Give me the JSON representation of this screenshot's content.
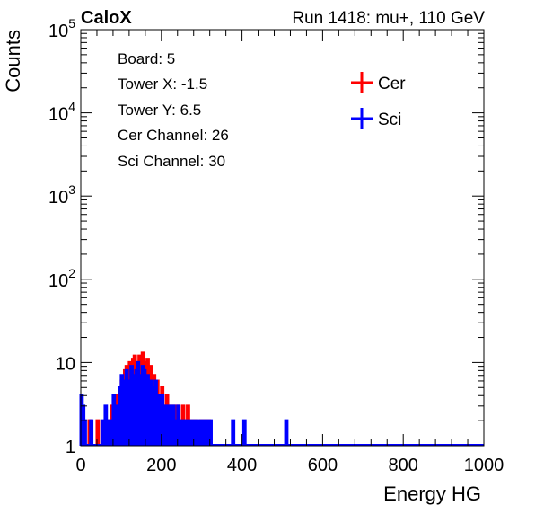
{
  "header": {
    "experiment": "CaloX",
    "run_info": "Run 1418: mu+, 110 GeV"
  },
  "info_box": {
    "lines": [
      "Board: 5",
      "Tower X: -1.5",
      "Tower Y: 6.5",
      "Cer Channel: 26",
      "Sci Channel: 30"
    ]
  },
  "chart_data": {
    "type": "bar",
    "title": "",
    "xlabel": "Energy HG",
    "ylabel": "Counts",
    "xlim": [
      0,
      1000
    ],
    "ylim": [
      1,
      100000
    ],
    "y_scale": "log",
    "x_ticks": [
      0,
      200,
      400,
      600,
      800,
      1000
    ],
    "x_tick_labels": [
      "0",
      "200",
      "400",
      "600",
      "800",
      "1000"
    ],
    "y_ticks": [
      1,
      10,
      100,
      1000,
      10000,
      100000
    ],
    "y_tick_labels": [
      {
        "base": "1",
        "exp": ""
      },
      {
        "base": "10",
        "exp": ""
      },
      {
        "base": "10",
        "exp": "2"
      },
      {
        "base": "10",
        "exp": "3"
      },
      {
        "base": "10",
        "exp": "4"
      },
      {
        "base": "10",
        "exp": "5"
      }
    ],
    "legend_position": "top-right",
    "series": [
      {
        "name": "Cer",
        "color": "#ff0000",
        "bin_width": 4,
        "bins": [
          [
            4,
            2
          ],
          [
            20,
            2
          ],
          [
            40,
            2
          ],
          [
            68,
            2
          ],
          [
            76,
            3
          ],
          [
            84,
            2
          ],
          [
            88,
            4
          ],
          [
            92,
            3
          ],
          [
            96,
            5
          ],
          [
            100,
            6
          ],
          [
            104,
            6
          ],
          [
            108,
            8
          ],
          [
            112,
            9
          ],
          [
            116,
            7
          ],
          [
            120,
            10
          ],
          [
            124,
            8
          ],
          [
            128,
            11
          ],
          [
            132,
            12
          ],
          [
            136,
            10
          ],
          [
            140,
            9
          ],
          [
            144,
            12
          ],
          [
            148,
            11
          ],
          [
            152,
            13
          ],
          [
            156,
            10
          ],
          [
            160,
            9
          ],
          [
            164,
            11
          ],
          [
            168,
            8
          ],
          [
            172,
            9
          ],
          [
            176,
            6
          ],
          [
            180,
            7
          ],
          [
            184,
            5
          ],
          [
            188,
            6
          ],
          [
            192,
            4
          ],
          [
            196,
            3
          ],
          [
            200,
            5
          ],
          [
            204,
            3
          ],
          [
            208,
            2
          ],
          [
            212,
            4
          ],
          [
            216,
            3
          ],
          [
            220,
            2
          ],
          [
            224,
            3
          ],
          [
            228,
            2
          ],
          [
            232,
            3
          ],
          [
            236,
            2
          ],
          [
            240,
            3
          ],
          [
            244,
            2
          ],
          [
            248,
            2
          ],
          [
            252,
            3
          ],
          [
            256,
            2
          ],
          [
            260,
            2
          ],
          [
            264,
            3
          ],
          [
            268,
            2
          ],
          [
            272,
            2
          ],
          [
            276,
            2
          ],
          [
            280,
            2
          ],
          [
            284,
            2
          ],
          [
            296,
            2
          ],
          [
            300,
            2
          ],
          [
            304,
            2
          ],
          [
            312,
            2
          ],
          [
            316,
            2
          ]
        ]
      },
      {
        "name": "Sci",
        "color": "#0000ff",
        "bin_width": 4,
        "bins": [
          [
            0,
            4
          ],
          [
            4,
            3
          ],
          [
            8,
            2
          ],
          [
            24,
            2
          ],
          [
            52,
            2
          ],
          [
            56,
            2
          ],
          [
            60,
            3
          ],
          [
            64,
            2
          ],
          [
            72,
            2
          ],
          [
            80,
            4
          ],
          [
            88,
            3
          ],
          [
            92,
            3
          ],
          [
            96,
            5
          ],
          [
            100,
            7
          ],
          [
            104,
            4
          ],
          [
            108,
            6
          ],
          [
            112,
            8
          ],
          [
            116,
            6
          ],
          [
            120,
            5
          ],
          [
            124,
            9
          ],
          [
            128,
            7
          ],
          [
            132,
            6
          ],
          [
            136,
            8
          ],
          [
            140,
            10
          ],
          [
            144,
            7
          ],
          [
            148,
            6
          ],
          [
            152,
            9
          ],
          [
            156,
            8
          ],
          [
            160,
            5
          ],
          [
            164,
            7
          ],
          [
            168,
            4
          ],
          [
            172,
            6
          ],
          [
            176,
            5
          ],
          [
            180,
            4
          ],
          [
            184,
            6
          ],
          [
            188,
            3
          ],
          [
            192,
            4
          ],
          [
            196,
            3
          ],
          [
            200,
            4
          ],
          [
            204,
            2
          ],
          [
            208,
            3
          ],
          [
            212,
            2
          ],
          [
            216,
            3
          ],
          [
            220,
            2
          ],
          [
            224,
            2
          ],
          [
            228,
            3
          ],
          [
            232,
            2
          ],
          [
            236,
            2
          ],
          [
            240,
            3
          ],
          [
            244,
            2
          ],
          [
            248,
            2
          ],
          [
            252,
            2
          ],
          [
            256,
            2
          ],
          [
            260,
            2
          ],
          [
            264,
            2
          ],
          [
            268,
            2
          ],
          [
            272,
            2
          ],
          [
            276,
            2
          ],
          [
            280,
            2
          ],
          [
            284,
            2
          ],
          [
            288,
            2
          ],
          [
            292,
            2
          ],
          [
            296,
            2
          ],
          [
            300,
            2
          ],
          [
            304,
            2
          ],
          [
            308,
            2
          ],
          [
            312,
            2
          ],
          [
            316,
            2
          ],
          [
            320,
            2
          ],
          [
            376,
            2
          ],
          [
            404,
            2
          ],
          [
            508,
            2
          ]
        ]
      }
    ]
  }
}
